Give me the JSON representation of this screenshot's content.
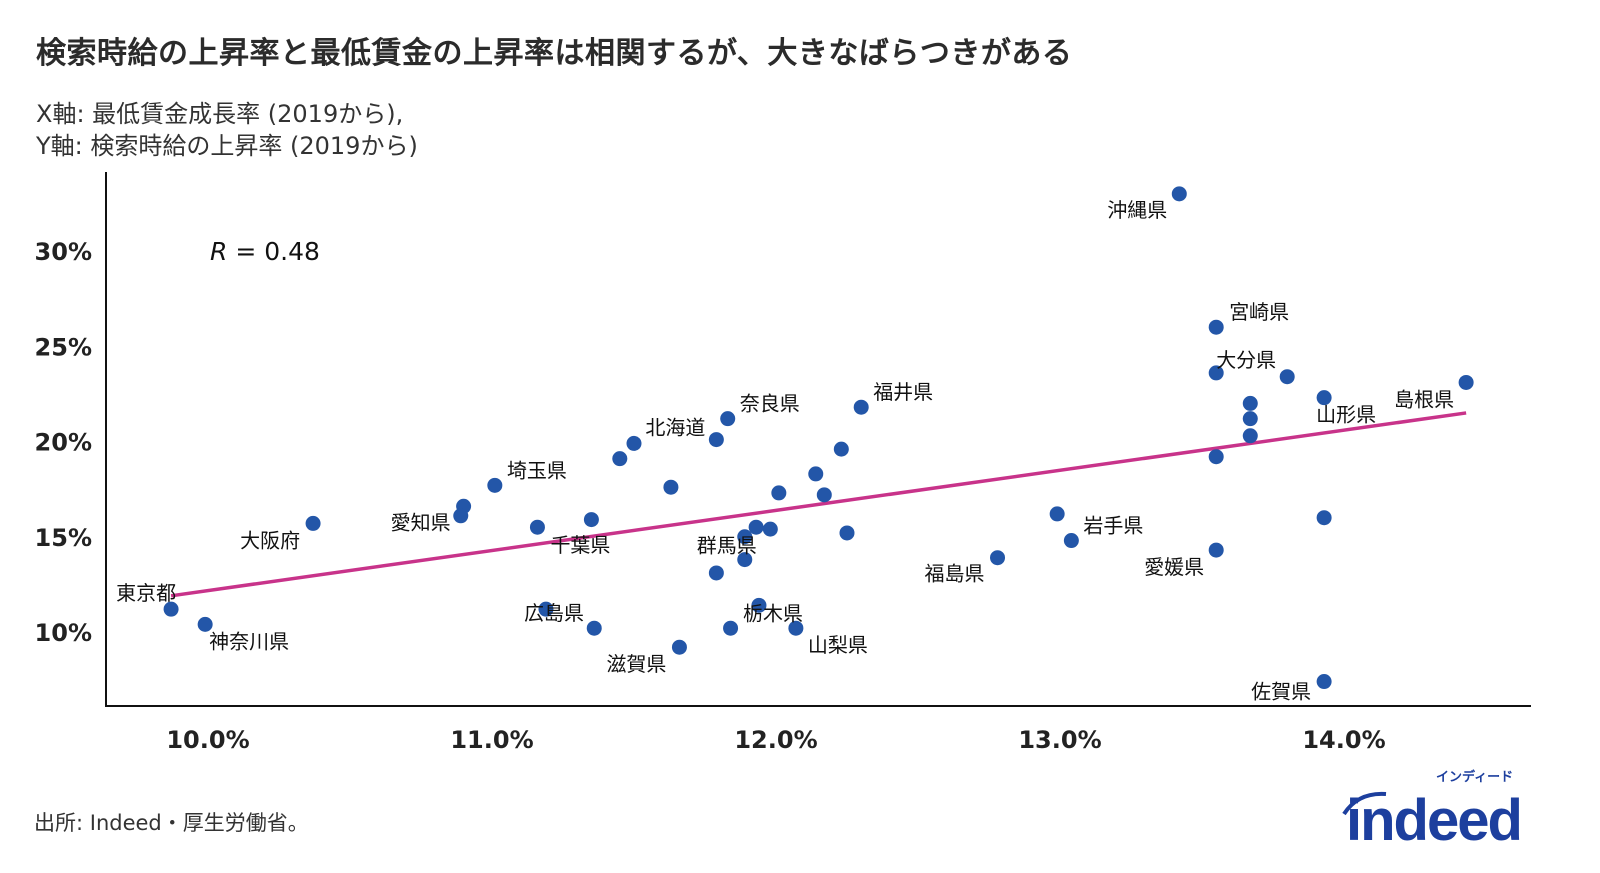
{
  "title": "検索時給の上昇率と最低賃金の上昇率は相関するが、大きなばらつきがある",
  "subtitle_x": "X軸: 最低賃金成長率 (2019から),",
  "subtitle_y": "Y軸: 検索時給の上昇率 (2019から)",
  "source": "出所: Indeed・厚生労働省。",
  "logo": {
    "word": "indeed",
    "kana": "インディード"
  },
  "colors": {
    "point": "#2356a8",
    "trend": "#c8338a",
    "axis": "#111111"
  },
  "chart_data": {
    "type": "scatter",
    "annotation": {
      "symbol": "R",
      "text": " = 0.48"
    },
    "xlim": [
      9.65,
      14.65
    ],
    "ylim": [
      6.0,
      34.5
    ],
    "x_ticks": [
      {
        "v": 10,
        "label": "10.0%"
      },
      {
        "v": 11,
        "label": "11.0%"
      },
      {
        "v": 12,
        "label": "12.0%"
      },
      {
        "v": 13,
        "label": "13.0%"
      },
      {
        "v": 14,
        "label": "14.0%"
      }
    ],
    "y_ticks": [
      {
        "v": 10,
        "label": "10%"
      },
      {
        "v": 15,
        "label": "15%"
      },
      {
        "v": 20,
        "label": "20%"
      },
      {
        "v": 25,
        "label": "25%"
      },
      {
        "v": 30,
        "label": "30%"
      }
    ],
    "grid": false,
    "trendline": {
      "x": [
        9.87,
        14.43
      ],
      "y": [
        11.9,
        21.5
      ]
    },
    "points": [
      {
        "x": 13.42,
        "y": 33.0,
        "label": "沖縄県"
      },
      {
        "x": 13.55,
        "y": 26.0,
        "label": "宮崎県"
      },
      {
        "x": 13.55,
        "y": 23.6,
        "label": "大分県"
      },
      {
        "x": 13.8,
        "y": 23.4,
        "label": ""
      },
      {
        "x": 14.43,
        "y": 23.1,
        "label": "島根県"
      },
      {
        "x": 13.93,
        "y": 22.3,
        "label": "山形県"
      },
      {
        "x": 13.67,
        "y": 22.0,
        "label": ""
      },
      {
        "x": 13.67,
        "y": 21.2,
        "label": ""
      },
      {
        "x": 13.67,
        "y": 20.3,
        "label": ""
      },
      {
        "x": 13.55,
        "y": 19.2,
        "label": ""
      },
      {
        "x": 13.93,
        "y": 16.0,
        "label": ""
      },
      {
        "x": 13.55,
        "y": 14.3,
        "label": "愛媛県"
      },
      {
        "x": 13.93,
        "y": 7.4,
        "label": "佐賀県"
      },
      {
        "x": 12.3,
        "y": 21.8,
        "label": "福井県"
      },
      {
        "x": 11.83,
        "y": 21.2,
        "label": "奈良県"
      },
      {
        "x": 11.79,
        "y": 20.1,
        "label": "北海道"
      },
      {
        "x": 11.5,
        "y": 19.9,
        "label": ""
      },
      {
        "x": 11.45,
        "y": 19.1,
        "label": ""
      },
      {
        "x": 11.63,
        "y": 17.6,
        "label": ""
      },
      {
        "x": 11.01,
        "y": 17.7,
        "label": "埼玉県"
      },
      {
        "x": 12.23,
        "y": 19.6,
        "label": ""
      },
      {
        "x": 12.14,
        "y": 18.3,
        "label": ""
      },
      {
        "x": 12.01,
        "y": 17.3,
        "label": ""
      },
      {
        "x": 12.17,
        "y": 17.2,
        "label": ""
      },
      {
        "x": 12.25,
        "y": 15.2,
        "label": ""
      },
      {
        "x": 11.98,
        "y": 15.4,
        "label": ""
      },
      {
        "x": 11.93,
        "y": 15.5,
        "label": ""
      },
      {
        "x": 11.89,
        "y": 15.0,
        "label": ""
      },
      {
        "x": 11.89,
        "y": 13.8,
        "label": "群馬県"
      },
      {
        "x": 11.79,
        "y": 13.1,
        "label": ""
      },
      {
        "x": 11.94,
        "y": 11.4,
        "label": "栃木県"
      },
      {
        "x": 11.84,
        "y": 10.2,
        "label": ""
      },
      {
        "x": 12.07,
        "y": 10.2,
        "label": "山梨県"
      },
      {
        "x": 11.66,
        "y": 9.2,
        "label": "滋賀県"
      },
      {
        "x": 11.36,
        "y": 10.2,
        "label": ""
      },
      {
        "x": 11.19,
        "y": 11.2,
        "label": "広島県"
      },
      {
        "x": 11.35,
        "y": 15.9,
        "label": ""
      },
      {
        "x": 11.16,
        "y": 15.5,
        "label": "千葉県"
      },
      {
        "x": 10.9,
        "y": 16.6,
        "label": "愛知県"
      },
      {
        "x": 10.89,
        "y": 16.1,
        "label": ""
      },
      {
        "x": 10.37,
        "y": 15.7,
        "label": "大阪府"
      },
      {
        "x": 9.87,
        "y": 11.2,
        "label": "東京都"
      },
      {
        "x": 9.99,
        "y": 10.4,
        "label": "神奈川県"
      },
      {
        "x": 12.78,
        "y": 13.9,
        "label": "福島県"
      },
      {
        "x": 12.99,
        "y": 16.2,
        "label": ""
      },
      {
        "x": 13.04,
        "y": 14.8,
        "label": "岩手県"
      }
    ]
  }
}
